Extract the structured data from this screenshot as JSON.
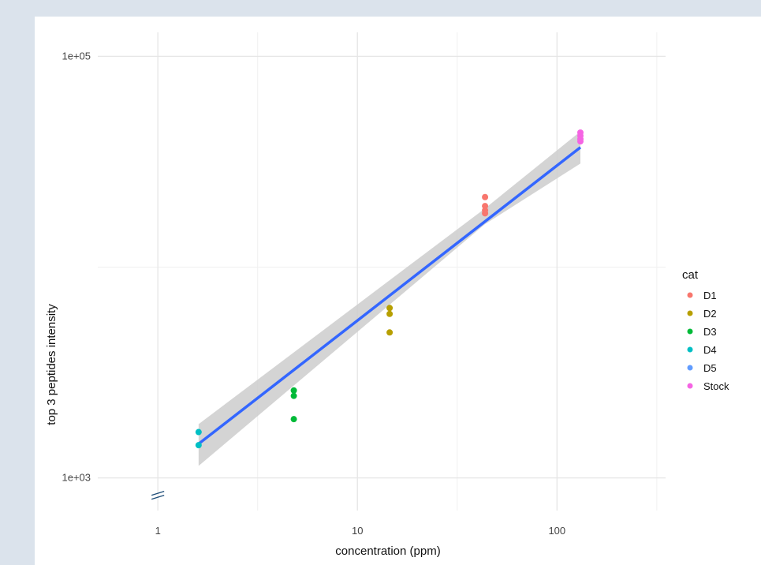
{
  "chart_data": {
    "type": "scatter",
    "xlabel": "concentration (ppm)",
    "ylabel": "top 3 peptides intensity",
    "x_scale": "log10",
    "y_scale": "log10",
    "xlim": [
      0.5,
      350
    ],
    "ylim": [
      700,
      130000
    ],
    "x_ticks": [
      1,
      10,
      100
    ],
    "x_tick_labels": [
      "1",
      "10",
      "100"
    ],
    "y_ticks": [
      1000,
      100000
    ],
    "y_tick_labels": [
      "1e+03",
      "1e+05"
    ],
    "grid": true,
    "axis_break_marker": "y-axis bottom",
    "legend": {
      "title": "cat",
      "position": "right",
      "entries": [
        {
          "name": "D1",
          "color": "#F8766D"
        },
        {
          "name": "D2",
          "color": "#B79F00"
        },
        {
          "name": "D3",
          "color": "#00BA38"
        },
        {
          "name": "D4",
          "color": "#00BFC4"
        },
        {
          "name": "D5",
          "color": "#619CFF"
        },
        {
          "name": "Stock",
          "color": "#F564E3"
        }
      ]
    },
    "series": [
      {
        "name": "D1",
        "color": "#F8766D",
        "points": [
          [
            43.6,
            21500
          ],
          [
            43.6,
            19500
          ],
          [
            43.6,
            18600
          ],
          [
            43.6,
            18000
          ]
        ]
      },
      {
        "name": "D2",
        "color": "#B79F00",
        "points": [
          [
            14.5,
            6400
          ],
          [
            14.5,
            6000
          ],
          [
            14.5,
            4900
          ]
        ]
      },
      {
        "name": "D3",
        "color": "#00BA38",
        "points": [
          [
            4.8,
            2600
          ],
          [
            4.8,
            2450
          ],
          [
            4.8,
            1900
          ]
        ]
      },
      {
        "name": "D4",
        "color": "#00BFC4",
        "points": [
          [
            1.6,
            1650
          ],
          [
            1.6,
            1430
          ]
        ]
      },
      {
        "name": "D5",
        "color": "#619CFF",
        "points": []
      },
      {
        "name": "Stock",
        "color": "#F564E3",
        "points": [
          [
            131,
            43500
          ],
          [
            131,
            42000
          ],
          [
            131,
            40500
          ],
          [
            131,
            39500
          ]
        ]
      }
    ],
    "fit": {
      "method": "linear regression with confidence band",
      "line_color": "#3366FF",
      "band_color": "#cccccc",
      "points": [
        [
          1.6,
          1450
        ],
        [
          131,
          37000
        ]
      ],
      "band_upper": [
        [
          1.6,
          1800
        ],
        [
          43.6,
          19000
        ],
        [
          131,
          44000
        ]
      ],
      "band_lower": [
        [
          1.6,
          1140
        ],
        [
          43.6,
          16000
        ],
        [
          131,
          31000
        ]
      ]
    }
  }
}
